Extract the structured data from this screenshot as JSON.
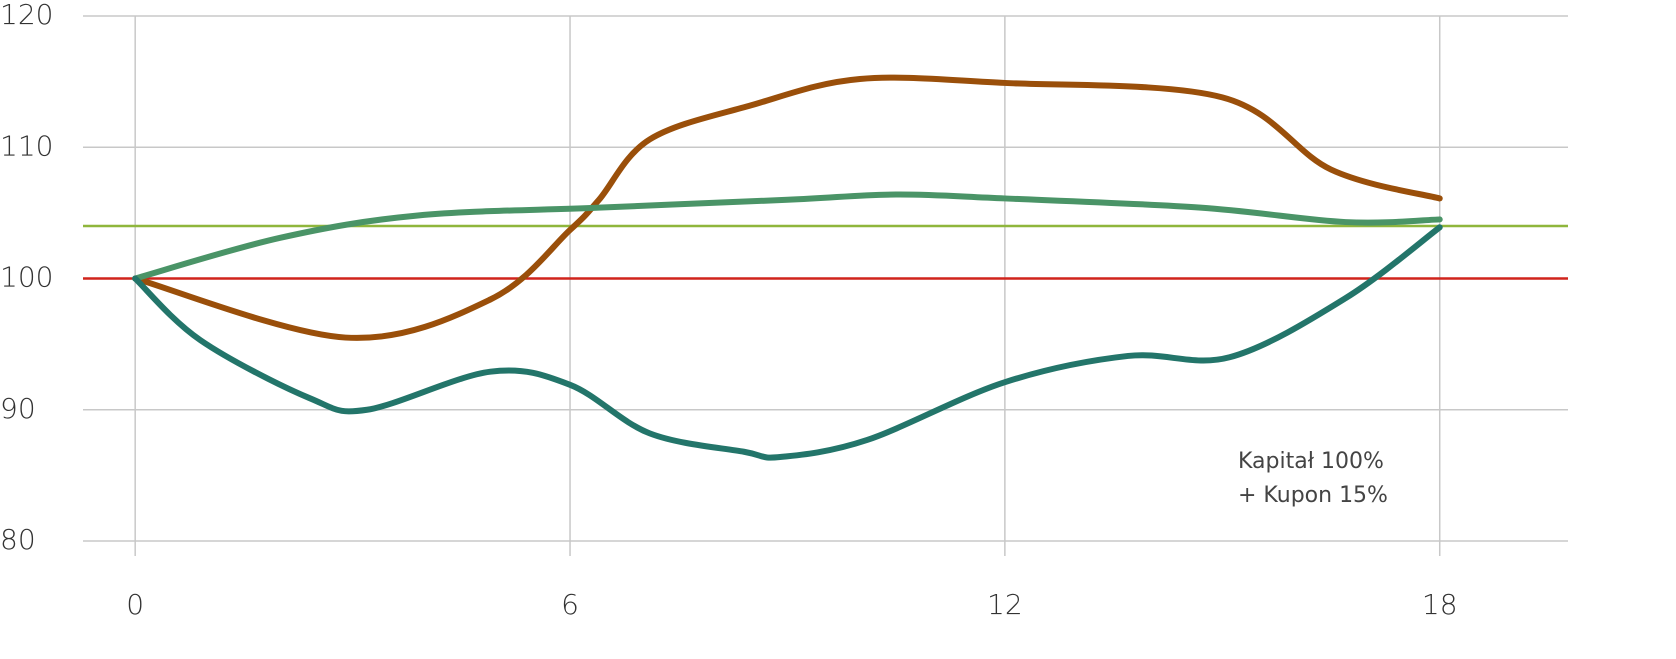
{
  "chart_data": {
    "type": "line",
    "xlim": [
      -0.72,
      19.77
    ],
    "ylim": [
      80,
      120
    ],
    "xticks": [
      0,
      6,
      12,
      18
    ],
    "yticks": [
      80,
      90,
      100,
      110,
      120
    ],
    "grid": true,
    "smooth": true,
    "reference_lines": [
      {
        "value": 100,
        "color": "#d0241c"
      },
      {
        "value": 104,
        "color": "#8fb63c"
      }
    ],
    "annotation": [
      "Kapitał 100%",
      "+ Kupon 15%"
    ],
    "series": [
      {
        "color": "#9a4f0a",
        "x": [
          0,
          2.9,
          4.9,
          6,
          6.4,
          7.1,
          8.5,
          10,
          12,
          15,
          16.5,
          18
        ],
        "values": [
          100,
          95.5,
          98.4,
          103.7,
          106,
          110.6,
          113.2,
          115.2,
          114.9,
          113.8,
          108.3,
          106.1
        ]
      },
      {
        "color": "#4a9467",
        "x": [
          0,
          2,
          3.9,
          6.4,
          9,
          10.5,
          12,
          14.7,
          16.7,
          18
        ],
        "values": [
          100,
          103.1,
          104.8,
          105.4,
          106,
          106.4,
          106.1,
          105.4,
          104.3,
          104.5
        ]
      },
      {
        "color": "#23756a",
        "x": [
          0,
          0.9,
          2.4,
          3.2,
          4.9,
          6,
          7.1,
          8.4,
          8.9,
          10.1,
          12,
          13.7,
          15.1,
          16.7,
          18
        ],
        "values": [
          100,
          95.3,
          90.9,
          90,
          92.9,
          91.9,
          88.2,
          86.8,
          86.4,
          87.7,
          92.1,
          94.1,
          94,
          98.5,
          103.9
        ]
      }
    ]
  }
}
